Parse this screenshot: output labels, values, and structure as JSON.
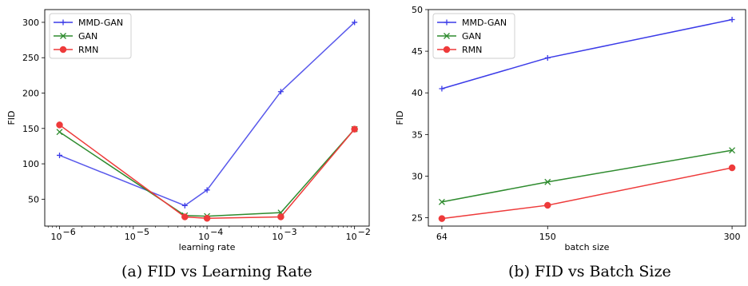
{
  "colors": {
    "MMD-GAN": "#3b3be8",
    "GAN": "#2e8b2e",
    "RMN": "#ee3a3a"
  },
  "captions": {
    "a": "(a) FID vs Learning Rate",
    "b": "(b) FID vs Batch Size"
  },
  "chart_data": [
    {
      "type": "line",
      "xscale": "log",
      "x": [
        1e-06,
        5e-05,
        0.0001,
        0.001,
        0.01
      ],
      "xticks": [
        1e-06,
        1e-05,
        0.0001,
        0.001,
        0.01
      ],
      "xticklabels": [
        [
          "10",
          "−6"
        ],
        [
          "10",
          "−5"
        ],
        [
          "10",
          "−4"
        ],
        [
          "10",
          "−3"
        ],
        [
          "10",
          "−2"
        ]
      ],
      "xlim": [
        6.3e-07,
        0.0158
      ],
      "yticks": [
        50,
        100,
        150,
        200,
        250,
        300
      ],
      "ylim": [
        12,
        318
      ],
      "xlabel": "learning rate",
      "ylabel": "FID",
      "legend": "top-left",
      "series": [
        {
          "name": "MMD-GAN",
          "marker": "plus",
          "values": [
            112,
            41,
            63,
            202,
            300
          ]
        },
        {
          "name": "GAN",
          "marker": "x",
          "values": [
            145,
            27,
            26,
            31,
            149
          ]
        },
        {
          "name": "RMN",
          "marker": "circle",
          "values": [
            155,
            25,
            23,
            25,
            149
          ]
        }
      ]
    },
    {
      "type": "line",
      "xscale": "linear",
      "x": [
        64,
        150,
        300
      ],
      "xticks": [
        64,
        150,
        300
      ],
      "xticklabels": [
        "64",
        "150",
        "300"
      ],
      "xlim": [
        53,
        311
      ],
      "yticks": [
        25,
        30,
        35,
        40,
        45,
        50
      ],
      "ylim": [
        24,
        50
      ],
      "xlabel": "batch size",
      "ylabel": "FID",
      "legend": "top-left",
      "series": [
        {
          "name": "MMD-GAN",
          "marker": "plus",
          "values": [
            40.5,
            44.2,
            48.8
          ]
        },
        {
          "name": "GAN",
          "marker": "x",
          "values": [
            26.9,
            29.3,
            33.1
          ]
        },
        {
          "name": "RMN",
          "marker": "circle",
          "values": [
            24.9,
            26.5,
            31.0
          ]
        }
      ]
    }
  ]
}
